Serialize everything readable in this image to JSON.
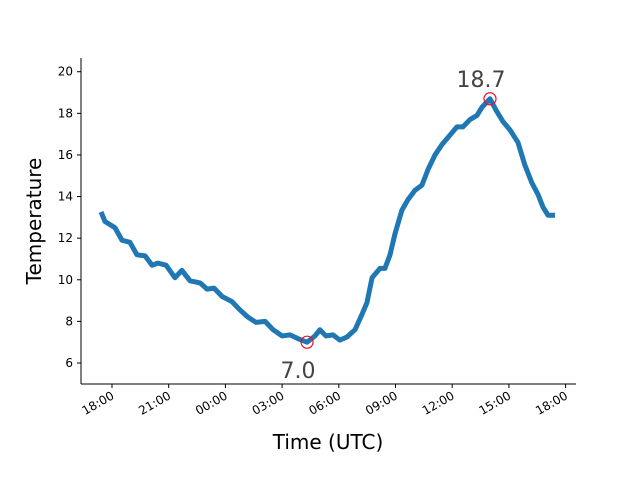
{
  "chart_data": {
    "type": "line",
    "x_label": "Time (UTC)",
    "y_label": "Temperature",
    "x": [
      -0.58,
      -0.37,
      0.16,
      0.53,
      0.95,
      1.32,
      1.75,
      2.12,
      2.43,
      2.86,
      3.33,
      3.7,
      4.13,
      4.66,
      5.03,
      5.4,
      5.82,
      6.35,
      6.77,
      7.2,
      7.62,
      8.1,
      8.52,
      9.0,
      9.42,
      9.89,
      10.32,
      10.74,
      11.0,
      11.32,
      11.69,
      12.06,
      12.43,
      12.86,
      13.23,
      13.49,
      13.76,
      14.18,
      14.44,
      14.71,
      14.97,
      15.34,
      15.66,
      16.03,
      16.4,
      16.72,
      17.09,
      17.46,
      17.88,
      18.25,
      18.57,
      18.94,
      19.31,
      19.58,
      20.0,
      20.32,
      20.69,
      21.06,
      21.48,
      21.85,
      22.22,
      22.54,
      22.8,
      23.07,
      23.44
    ],
    "series": [
      {
        "name": "Temperature",
        "color": "#1f77b4",
        "values": [
          13.26,
          12.8,
          12.5,
          11.9,
          11.8,
          11.2,
          11.15,
          10.7,
          10.8,
          10.7,
          10.1,
          10.45,
          9.95,
          9.85,
          9.55,
          9.6,
          9.2,
          8.95,
          8.55,
          8.2,
          7.95,
          8.0,
          7.6,
          7.3,
          7.35,
          7.15,
          7.0,
          7.3,
          7.6,
          7.3,
          7.35,
          7.1,
          7.25,
          7.6,
          8.35,
          8.9,
          10.1,
          10.55,
          10.55,
          11.2,
          12.2,
          13.35,
          13.85,
          14.3,
          14.55,
          15.3,
          16.0,
          16.5,
          16.95,
          17.35,
          17.35,
          17.7,
          17.9,
          18.3,
          18.7,
          18.15,
          17.6,
          17.2,
          16.6,
          15.5,
          14.65,
          14.1,
          13.5,
          13.1,
          13.1
        ]
      }
    ],
    "annotations": [
      {
        "text": "7.0",
        "x": 10.32,
        "y": 7.0,
        "position": "below",
        "color": "#444444",
        "marker_color": "#e8112d"
      },
      {
        "text": "18.7",
        "x": 20.0,
        "y": 18.7,
        "position": "above",
        "color": "#444444",
        "marker_color": "#e8112d"
      }
    ],
    "xlim": [
      -1.64,
      24.55
    ],
    "xticks": [
      {
        "value": 0,
        "label": "18:00"
      },
      {
        "value": 3,
        "label": "21:00"
      },
      {
        "value": 6,
        "label": "00:00"
      },
      {
        "value": 9,
        "label": "03:00"
      },
      {
        "value": 12,
        "label": "06:00"
      },
      {
        "value": 15,
        "label": "09:00"
      },
      {
        "value": 18,
        "label": "12:00"
      },
      {
        "value": 21,
        "label": "15:00"
      },
      {
        "value": 24,
        "label": "18:00"
      }
    ],
    "ylim": [
      4.99,
      20.66
    ],
    "yticks": [
      6,
      8,
      10,
      12,
      14,
      16,
      18,
      20
    ],
    "grid": false
  }
}
